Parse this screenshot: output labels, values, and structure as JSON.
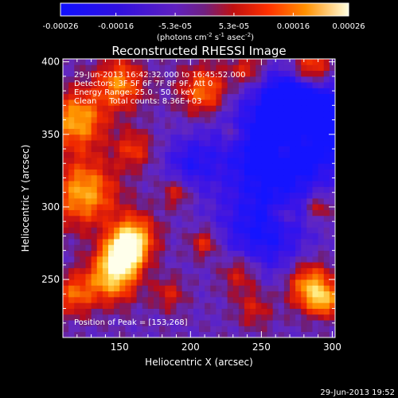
{
  "chart_data": {
    "type": "heatmap",
    "title": "Reconstructed RHESSI Image",
    "xlabel": "Heliocentric X (arcsec)",
    "ylabel": "Heliocentric Y (arcsec)",
    "xlim": [
      110,
      302
    ],
    "ylim": [
      210,
      402
    ],
    "xticks": [
      150,
      200,
      250,
      300
    ],
    "yticks": [
      250,
      300,
      350,
      400
    ],
    "colorbar": {
      "min": -0.00026,
      "max": 0.00026,
      "tick_labels": [
        "-0.00026",
        "-0.00016",
        "-5.3e-05",
        "5.3e-05",
        "0.00016",
        "0.00026"
      ],
      "tick_values": [
        -0.00026,
        -0.00016,
        -5.3e-05,
        5.3e-05,
        0.00016,
        0.00026
      ],
      "label_main": "(photons cm",
      "label_exp1": "-2",
      "label_mid": " s",
      "label_exp2": "-1",
      "label_end": " asec",
      "label_exp3": "-2",
      "label_close": ")"
    },
    "annotations": [
      "29-Jun-2013 16:42:32.000 to 16:45:52.000",
      "Detectors: 3F 5F 6F 7F 8F 9F, Att 0",
      "Energy Range: 25.0 - 50.0 keV",
      "Clean     Total counts: 8.36E+03"
    ],
    "peak_label": "Position of Peak = [153,268]",
    "peak": [
      153,
      268
    ],
    "colors": {
      "negative": "#0000ff",
      "zero": "#6030c0",
      "positive": "#ff0000",
      "peak": "#ffffff"
    }
  },
  "footer_timestamp": "29-Jun-2013 19:52"
}
